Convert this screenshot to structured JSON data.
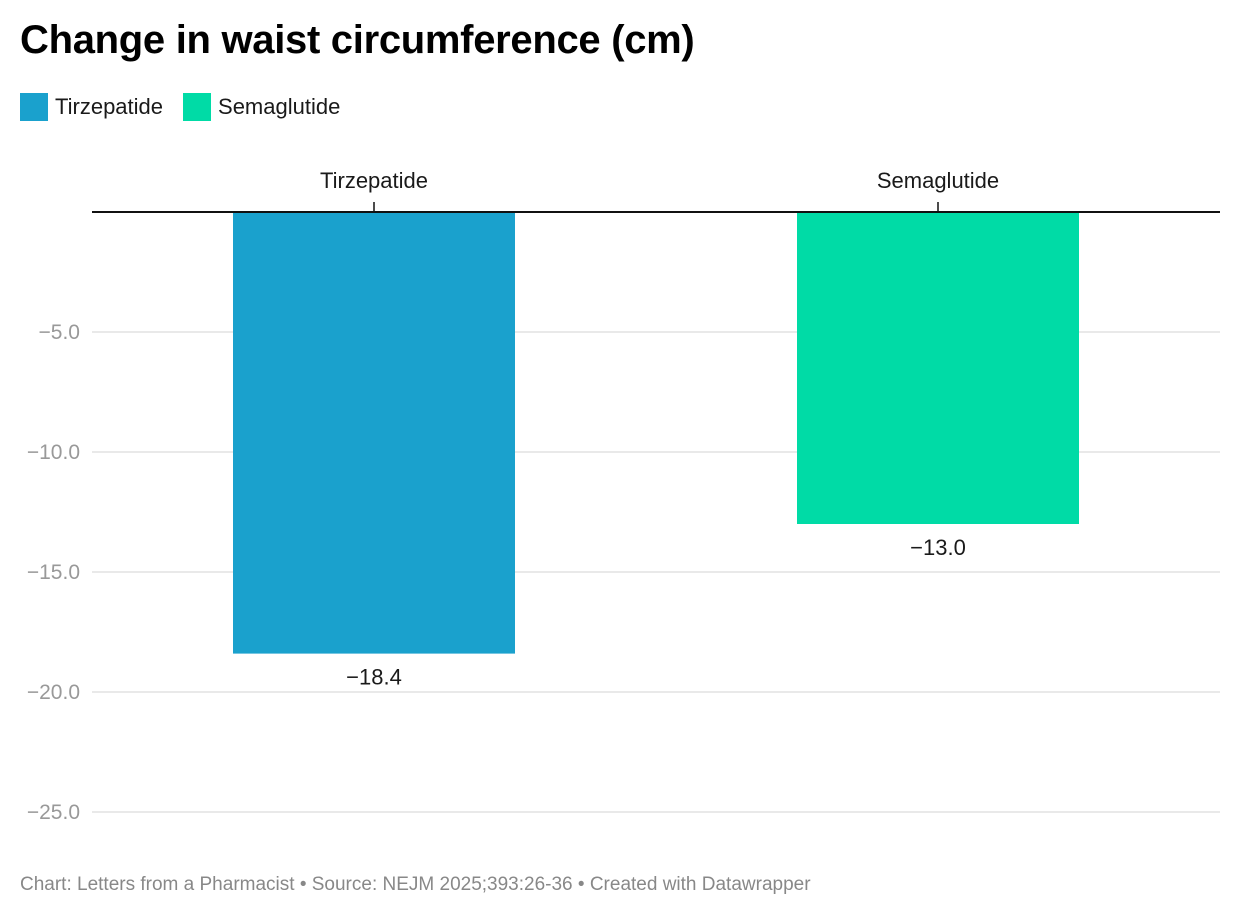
{
  "chart_data": {
    "type": "bar",
    "title": "Change in waist circumference (cm)",
    "categories": [
      "Tirzepatide",
      "Semaglutide"
    ],
    "values": [
      -18.4,
      -13.0
    ],
    "value_labels": [
      "−18.4",
      "−13.0"
    ],
    "ylim": [
      -25,
      0
    ],
    "yticks": [
      -5,
      -10,
      -15,
      -20,
      -25
    ],
    "ytick_labels": [
      "−5.0",
      "−10.0",
      "−15.0",
      "−20.0",
      "−25.0"
    ],
    "legend": [
      {
        "name": "Tirzepatide",
        "color": "#1aa1cd"
      },
      {
        "name": "Semaglutide",
        "color": "#00dba6"
      }
    ],
    "xlabel": "",
    "ylabel": "",
    "grid": true,
    "legend_position": "top-left"
  },
  "footer": {
    "credit": "Chart: Letters from a Pharmacist • Source: NEJM 2025;393:26-36 • Created with Datawrapper"
  }
}
